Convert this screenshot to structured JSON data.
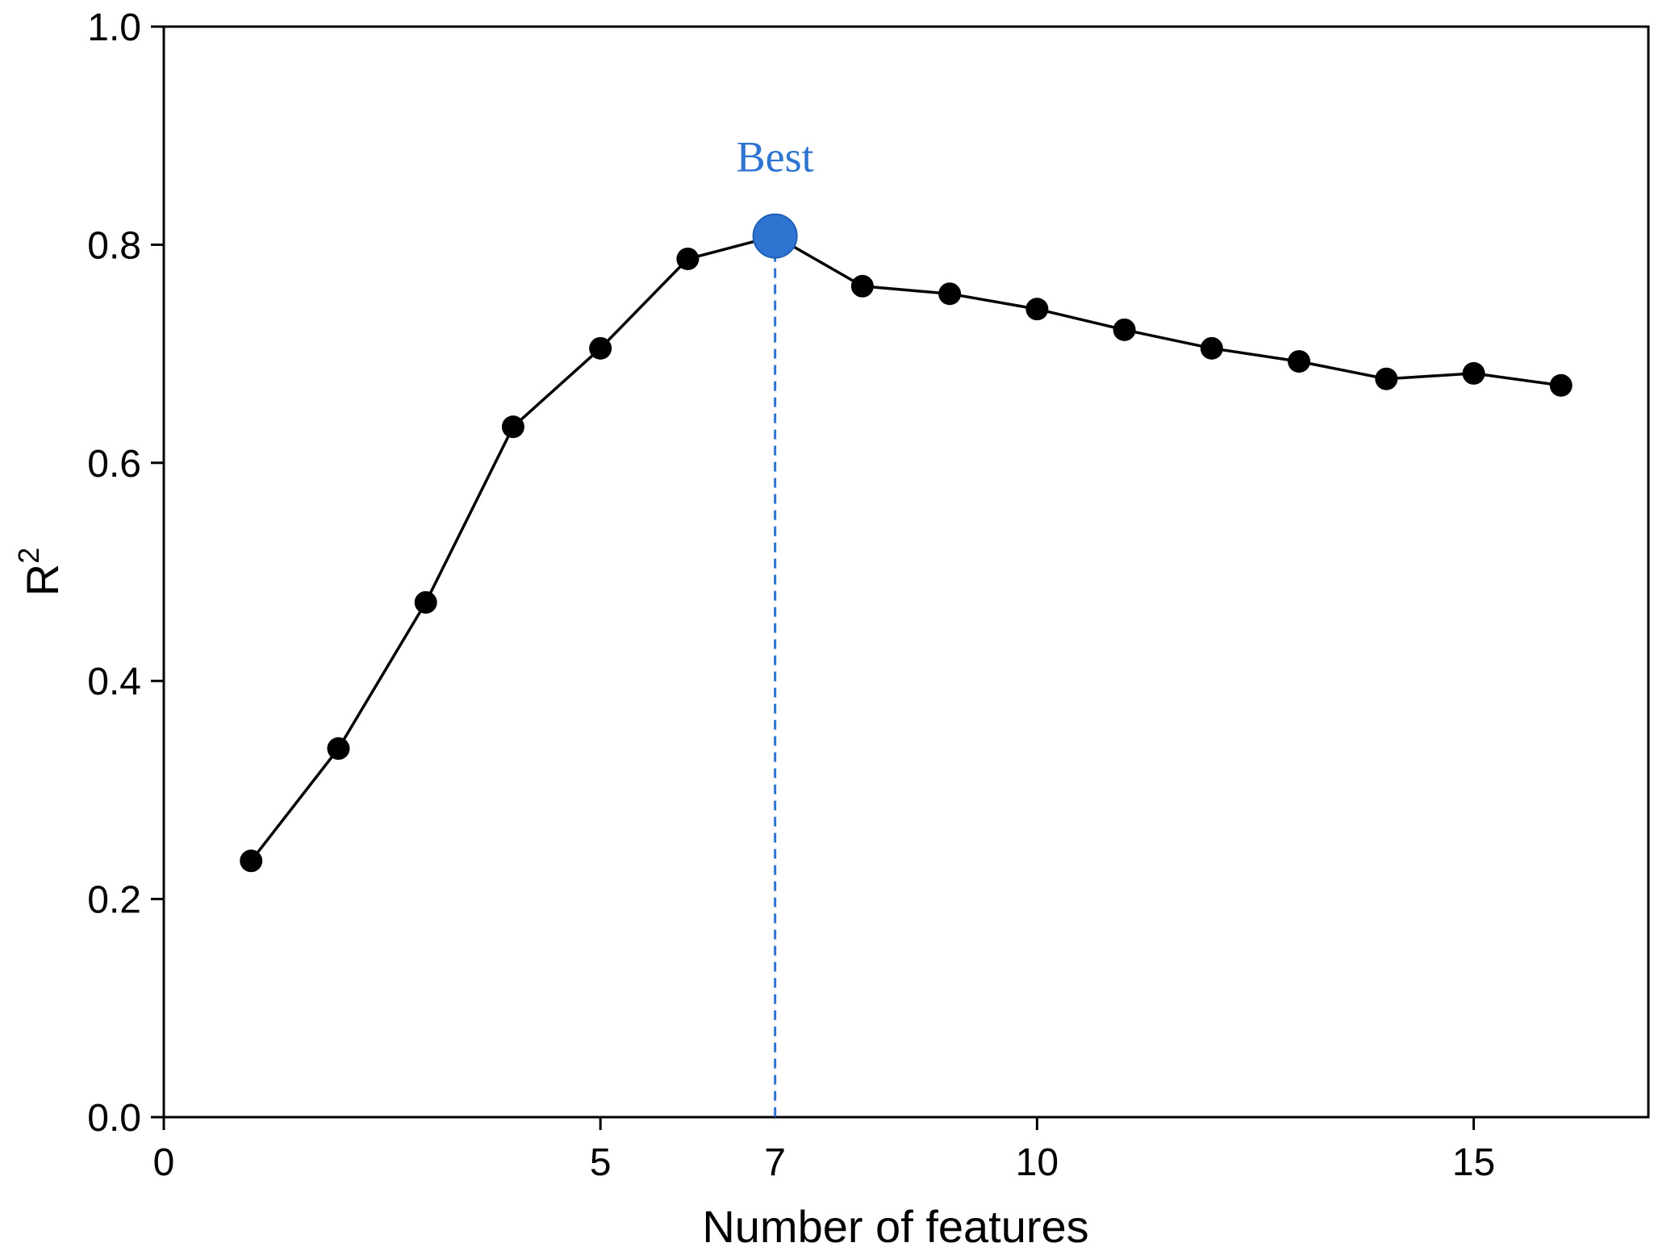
{
  "chart_data": {
    "type": "line",
    "xlabel": "Number of features",
    "ylabel": "R",
    "ylabel_superscript": "2",
    "xlim": [
      0,
      17
    ],
    "ylim": [
      0.0,
      1.0
    ],
    "x_ticks": [
      0,
      5,
      10,
      15
    ],
    "x_tick_labels": [
      "0",
      "5",
      "10",
      "15"
    ],
    "y_ticks": [
      0.0,
      0.2,
      0.4,
      0.6,
      0.8,
      1.0
    ],
    "y_tick_labels": [
      "0.0",
      "0.2",
      "0.4",
      "0.6",
      "0.8",
      "1.0"
    ],
    "grid": false,
    "series": [
      {
        "x": [
          1,
          2,
          3,
          4,
          5,
          6,
          7,
          8,
          9,
          10,
          11,
          12,
          13,
          14,
          15,
          16
        ],
        "values": [
          0.235,
          0.338,
          0.472,
          0.633,
          0.705,
          0.787,
          0.808,
          0.762,
          0.755,
          0.741,
          0.722,
          0.705,
          0.693,
          0.677,
          0.682,
          0.671
        ],
        "color": "#000000"
      }
    ],
    "highlight": {
      "x": 7,
      "y": 0.808,
      "label": "Best",
      "x_tick_label": "7",
      "color": "#2f74d0"
    }
  }
}
